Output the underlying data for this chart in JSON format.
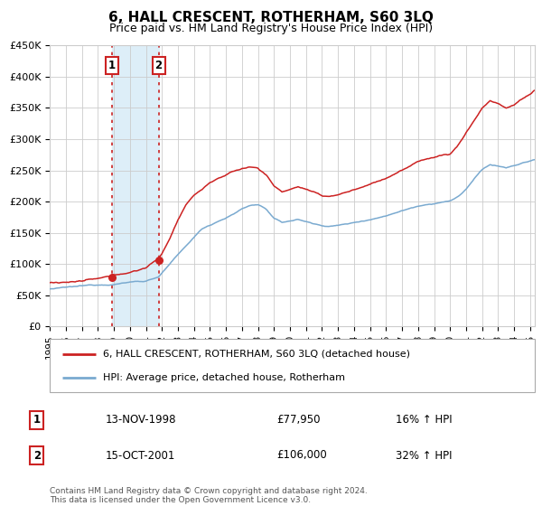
{
  "title": "6, HALL CRESCENT, ROTHERHAM, S60 3LQ",
  "subtitle": "Price paid vs. HM Land Registry's House Price Index (HPI)",
  "legend_line1": "6, HALL CRESCENT, ROTHERHAM, S60 3LQ (detached house)",
  "legend_line2": "HPI: Average price, detached house, Rotherham",
  "footer": "Contains HM Land Registry data © Crown copyright and database right 2024.\nThis data is licensed under the Open Government Licence v3.0.",
  "event1_date": "13-NOV-1998",
  "event1_price": 77950,
  "event1_label": "16% ↑ HPI",
  "event1_year": 1998.87,
  "event2_date": "15-OCT-2001",
  "event2_price": 106000,
  "event2_label": "32% ↑ HPI",
  "event2_year": 2001.79,
  "red_color": "#cc2222",
  "blue_color": "#7aaad0",
  "shade_color": "#ddeef8",
  "ylim": [
    0,
    450000
  ],
  "xlim_start": 1995.0,
  "xlim_end": 2025.3,
  "yticks": [
    0,
    50000,
    100000,
    150000,
    200000,
    250000,
    300000,
    350000,
    400000,
    450000
  ],
  "ytick_labels": [
    "£0",
    "£50K",
    "£100K",
    "£150K",
    "£200K",
    "£250K",
    "£300K",
    "£350K",
    "£400K",
    "£450K"
  ],
  "xticks": [
    1995,
    1996,
    1997,
    1998,
    1999,
    2000,
    2001,
    2002,
    2003,
    2004,
    2005,
    2006,
    2007,
    2008,
    2009,
    2010,
    2011,
    2012,
    2013,
    2014,
    2015,
    2016,
    2017,
    2018,
    2019,
    2020,
    2021,
    2022,
    2023,
    2024,
    2025
  ]
}
